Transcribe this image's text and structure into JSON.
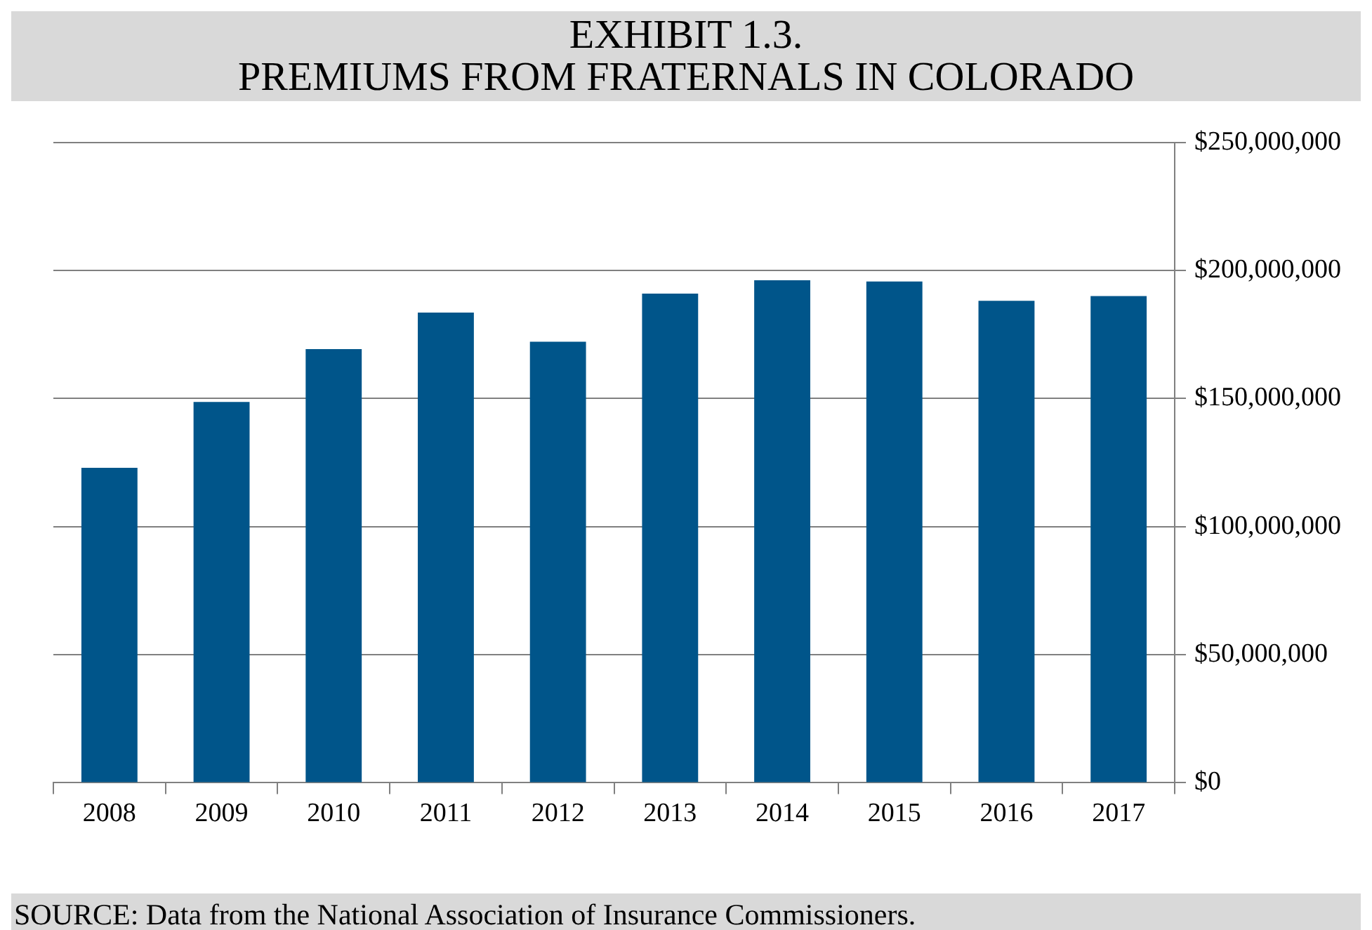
{
  "chart_data": {
    "type": "bar",
    "title": "EXHIBIT 1.3.\nPREMIUMS FROM FRATERNALS IN COLORADO",
    "categories": [
      "2008",
      "2009",
      "2010",
      "2011",
      "2012",
      "2013",
      "2014",
      "2015",
      "2016",
      "2017"
    ],
    "values": [
      123000000,
      148700000,
      169300000,
      183600000,
      172200000,
      191000000,
      196200000,
      195700000,
      188200000,
      190000000
    ],
    "color": "#00558a",
    "ylim": [
      0,
      250000000
    ],
    "yticks": [
      {
        "value": 0,
        "label": "$0"
      },
      {
        "value": 50000000,
        "label": "$50,000,000"
      },
      {
        "value": 100000000,
        "label": "$100,000,000"
      },
      {
        "value": 150000000,
        "label": "$150,000,000"
      },
      {
        "value": 200000000,
        "label": "$200,000,000"
      },
      {
        "value": 250000000,
        "label": "$250,000,000"
      }
    ],
    "grid": "y",
    "annotations": [
      "SOURCE: Data from the National Association of Insurance Commissioners."
    ]
  }
}
